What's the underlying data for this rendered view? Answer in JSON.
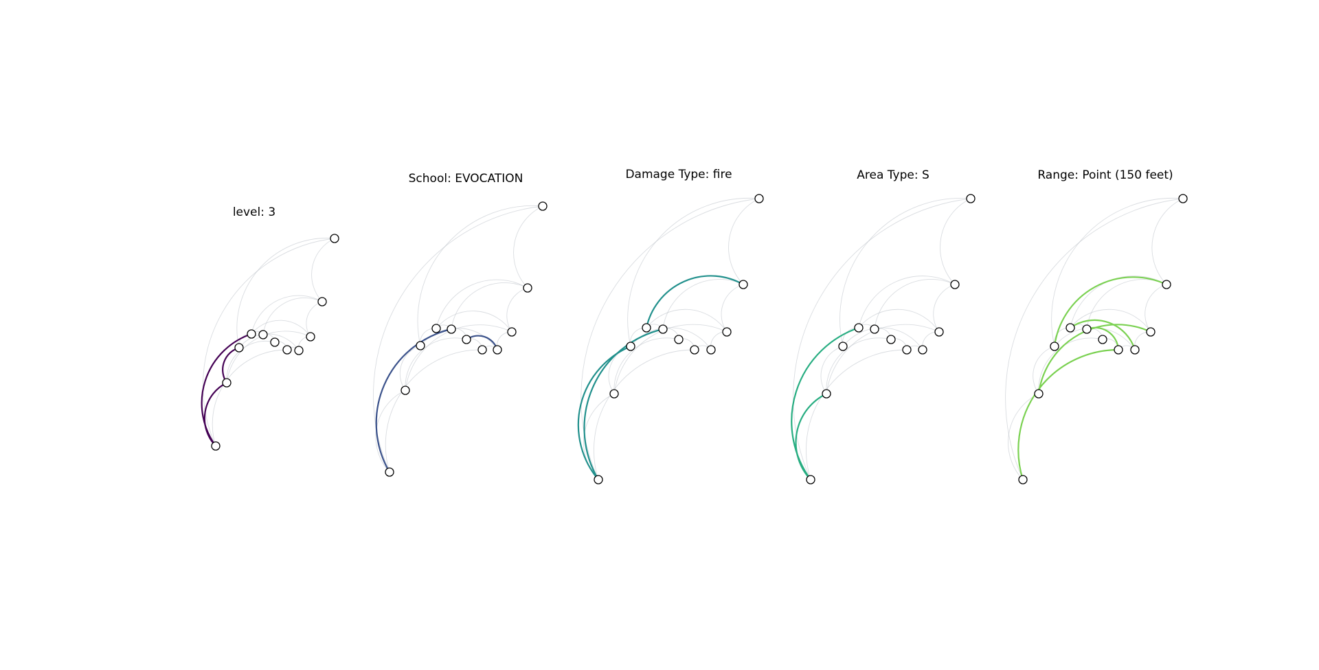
{
  "panels": [
    {
      "title": "level: 3",
      "color": "#440154",
      "highlight": [
        [
          0,
          1
        ],
        [
          1,
          2
        ],
        [
          0,
          3
        ]
      ]
    },
    {
      "title": "School: EVOCATION",
      "color": "#3b528b",
      "highlight": [
        [
          0,
          4
        ],
        [
          5,
          7
        ]
      ]
    },
    {
      "title": "Damage Type: fire",
      "color": "#21908c",
      "highlight": [
        [
          0,
          2
        ],
        [
          0,
          4
        ],
        [
          3,
          9
        ]
      ]
    },
    {
      "title": "Area Type: S",
      "color": "#27ad81",
      "highlight": [
        [
          0,
          1
        ],
        [
          0,
          3
        ]
      ]
    },
    {
      "title": "Range: Point (150 feet)",
      "color": "#7ad151",
      "highlight": [
        [
          0,
          6
        ],
        [
          4,
          6
        ],
        [
          3,
          7
        ],
        [
          1,
          8
        ],
        [
          2,
          9
        ]
      ]
    }
  ]
}
